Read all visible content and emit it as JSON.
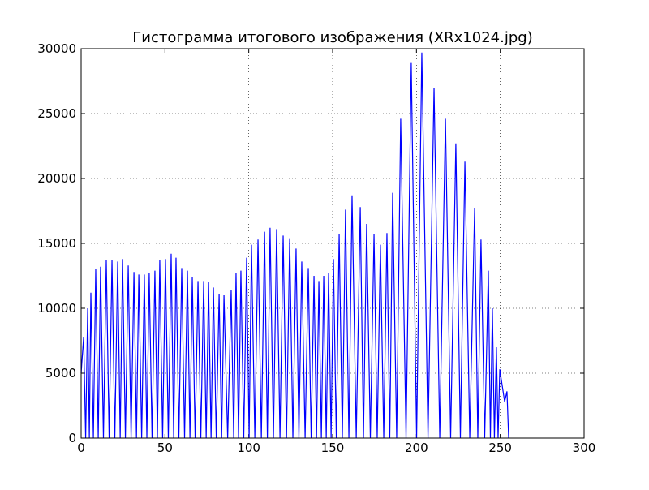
{
  "chart_data": {
    "type": "line",
    "title": "Гистограмма итогового изображения (XRx1024.jpg)",
    "color": "#0000ff",
    "grid": true,
    "xlim": [
      0,
      300
    ],
    "xticks": [
      0,
      50,
      100,
      150,
      200,
      250,
      300
    ],
    "ylim": [
      0,
      30000
    ],
    "yticks": [
      0,
      5000,
      10000,
      15000,
      20000,
      25000,
      30000
    ],
    "x": [
      0,
      1.5,
      2.7,
      3.9,
      4.9,
      5.8,
      7.3,
      8.7,
      10.2,
      11.6,
      13.3,
      15.0,
      16.7,
      18.4,
      20.1,
      21.8,
      23.3,
      24.7,
      26.4,
      28.1,
      29.8,
      31.5,
      33.0,
      34.4,
      36.1,
      37.7,
      39.2,
      40.6,
      42.3,
      44.0,
      45.5,
      46.9,
      48.6,
      50.3,
      52.0,
      53.7,
      55.2,
      56.6,
      58.3,
      60.0,
      61.7,
      63.4,
      64.9,
      66.3,
      68.0,
      69.7,
      71.4,
      73.1,
      74.6,
      76.0,
      77.5,
      78.9,
      80.6,
      82.3,
      83.8,
      85.2,
      87.4,
      89.5,
      91.0,
      92.4,
      93.9,
      95.3,
      97.0,
      98.7,
      100.2,
      101.6,
      103.6,
      105.5,
      107.5,
      109.4,
      111.1,
      112.7,
      114.7,
      116.6,
      118.6,
      120.5,
      122.5,
      124.4,
      126.3,
      128.2,
      129.9,
      131.6,
      133.6,
      135.5,
      137.2,
      138.9,
      140.4,
      141.8,
      143.3,
      144.7,
      146.2,
      147.6,
      149.1,
      150.5,
      152.2,
      153.9,
      155.8,
      157.7,
      159.7,
      161.6,
      164.1,
      166.5,
      168.4,
      170.3,
      172.5,
      174.7,
      176.6,
      178.5,
      180.5,
      182.4,
      184.1,
      185.8,
      188.2,
      190.6,
      193.8,
      196.9,
      200.1,
      203.2,
      206.9,
      210.5,
      213.9,
      217.3,
      220.4,
      223.5,
      226.2,
      228.9,
      231.8,
      234.7,
      236.6,
      238.5,
      240.7,
      242.9,
      244.1,
      245.3,
      246.5,
      247.7,
      248.7,
      249.7,
      252.6,
      254.0,
      255.0
    ],
    "values": [
      5000,
      7800,
      0,
      10000,
      0,
      11200,
      0,
      13000,
      0,
      13200,
      0,
      13700,
      0,
      13700,
      0,
      13600,
      0,
      13800,
      0,
      13300,
      0,
      12800,
      0,
      12600,
      0,
      12600,
      0,
      12700,
      0,
      12900,
      0,
      13700,
      0,
      13800,
      0,
      14200,
      0,
      13900,
      0,
      13100,
      0,
      12900,
      0,
      12400,
      0,
      12100,
      0,
      12100,
      0,
      12000,
      0,
      11600,
      0,
      11100,
      0,
      11000,
      0,
      11400,
      0,
      12700,
      0,
      12900,
      0,
      13900,
      0,
      14900,
      0,
      15300,
      0,
      15900,
      0,
      16200,
      0,
      16100,
      0,
      15600,
      0,
      15400,
      0,
      14600,
      0,
      13600,
      0,
      13100,
      0,
      12500,
      0,
      12100,
      0,
      12500,
      0,
      12700,
      0,
      13800,
      0,
      15700,
      0,
      17600,
      0,
      18700,
      0,
      17800,
      0,
      16500,
      0,
      15700,
      0,
      14900,
      0,
      15800,
      0,
      18900,
      0,
      24600,
      0,
      28900,
      0,
      29700,
      0,
      27000,
      0,
      24600,
      0,
      22700,
      0,
      21300,
      0,
      17700,
      0,
      15300,
      0,
      12900,
      0,
      10000,
      0,
      7000,
      0,
      5300,
      2800,
      3600,
      0
    ]
  }
}
